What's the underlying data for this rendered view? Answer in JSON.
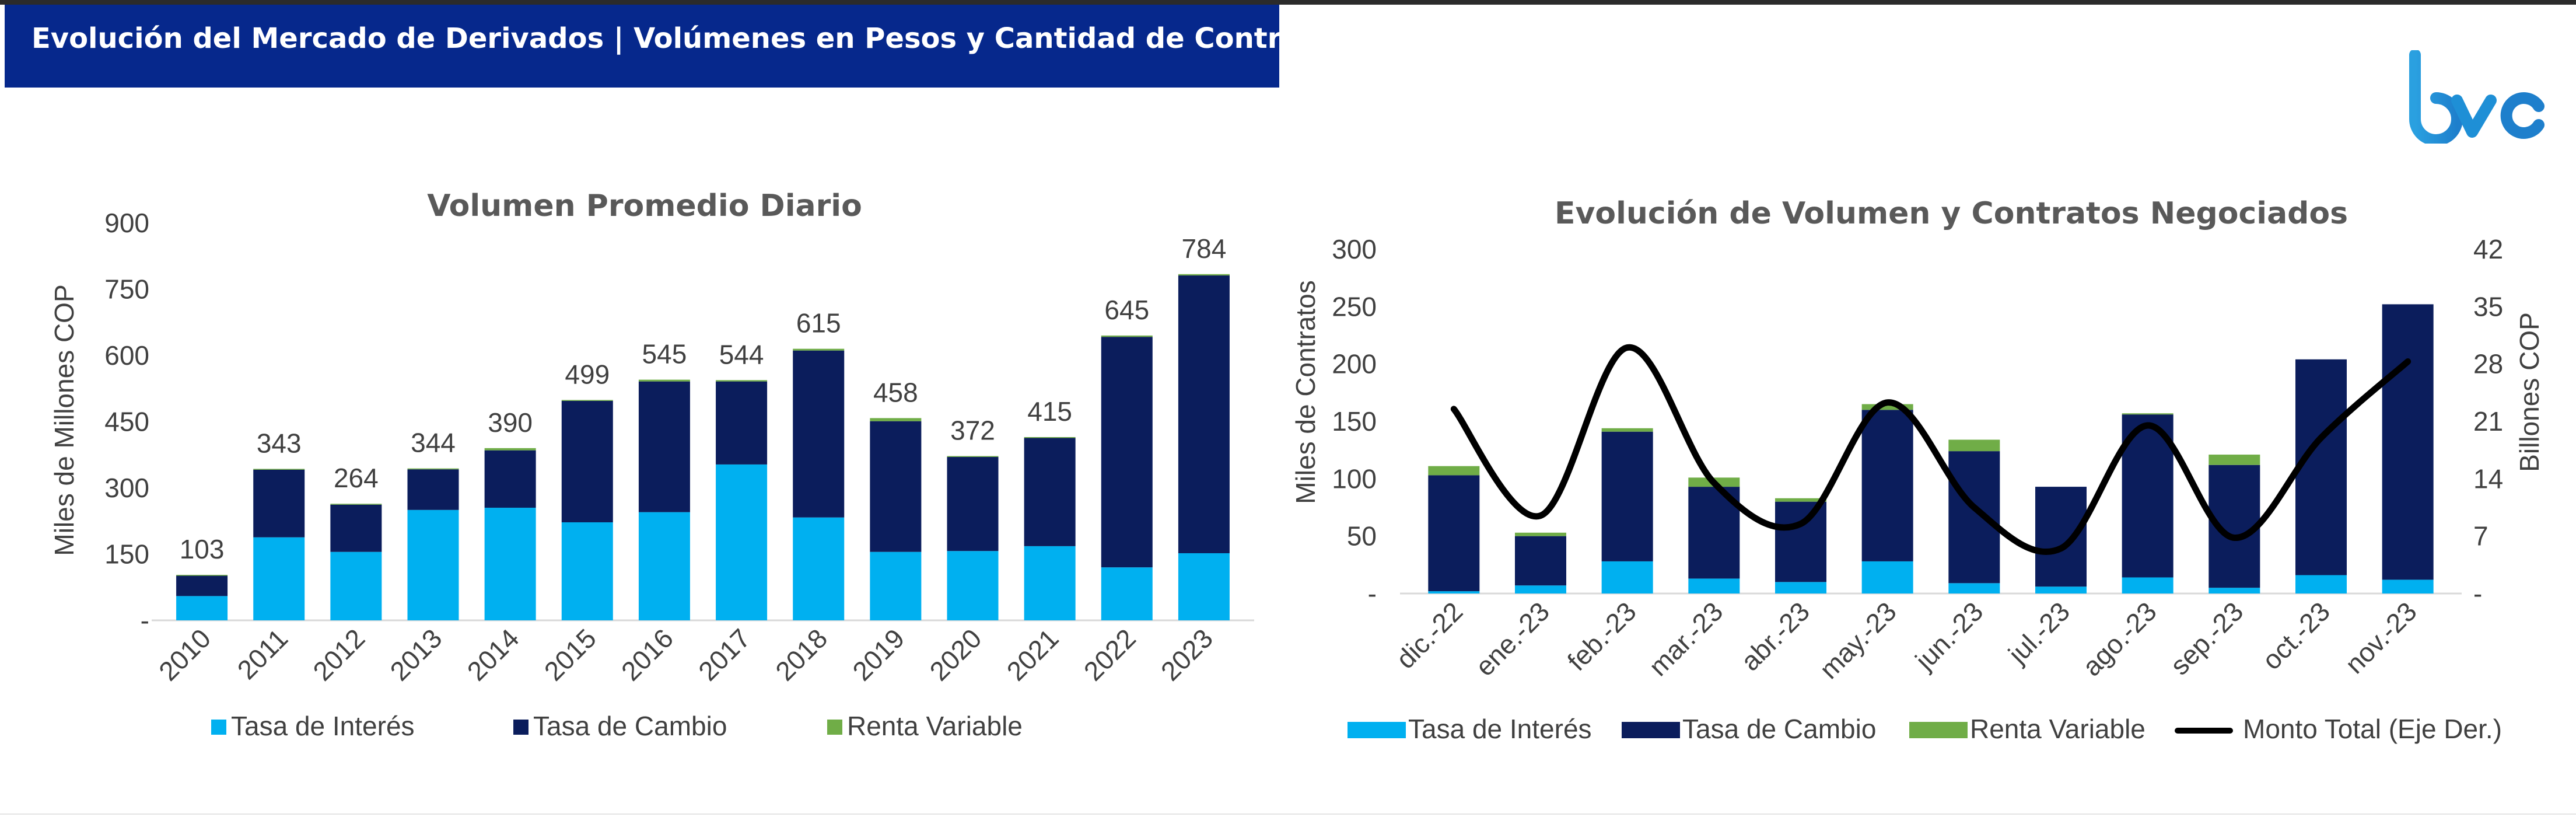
{
  "header": {
    "title": "Evolución del Mercado de Derivados | Volúmenes en Pesos y Cantidad de Contratos"
  },
  "logo": {
    "text": "bvc",
    "color": "#2a8fd6"
  },
  "colors": {
    "tasa_interes": "#00b0f0",
    "tasa_cambio": "#0b1d5c",
    "renta_variable": "#70ad47",
    "monto": "#000000",
    "header_bg": "#06288c"
  },
  "chart_data": [
    {
      "type": "bar",
      "stacked": true,
      "title": "Volumen Promedio Diario",
      "ylabel": "Miles de Millones COP",
      "ylim": [
        0,
        900
      ],
      "yticks": [
        "-",
        "150",
        "300",
        "450",
        "600",
        "750",
        "900"
      ],
      "categories": [
        "2010",
        "2011",
        "2012",
        "2013",
        "2014",
        "2015",
        "2016",
        "2017",
        "2018",
        "2019",
        "2020",
        "2021",
        "2022",
        "2023"
      ],
      "series": [
        {
          "name": "Tasa de Interés",
          "values": [
            55,
            188,
            155,
            250,
            255,
            222,
            245,
            353,
            233,
            155,
            157,
            168,
            120,
            152
          ]
        },
        {
          "name": "Tasa de Cambio",
          "values": [
            46,
            153,
            107,
            92,
            130,
            275,
            296,
            188,
            378,
            296,
            213,
            245,
            522,
            629
          ]
        },
        {
          "name": "Renta Variable",
          "values": [
            2,
            2,
            2,
            2,
            5,
            2,
            4,
            3,
            4,
            7,
            2,
            2,
            3,
            3
          ]
        }
      ],
      "totals": [
        "103",
        "343",
        "264",
        "344",
        "390",
        "499",
        "545",
        "544",
        "615",
        "458",
        "372",
        "415",
        "645",
        "784"
      ],
      "legend": "bottom"
    },
    {
      "type": "bar+line",
      "stacked": true,
      "title": "Evolución de Volumen y Contratos Negociados",
      "ylabel": "Miles de Contratos",
      "y2label": "Billones COP",
      "ylim": [
        0,
        300
      ],
      "y2lim": [
        0,
        42
      ],
      "yticks": [
        "-",
        "50",
        "100",
        "150",
        "200",
        "250",
        "300"
      ],
      "y2ticks": [
        "-",
        "7",
        "14",
        "21",
        "28",
        "35",
        "42"
      ],
      "categories": [
        "dic.-22",
        "ene.-23",
        "feb.-23",
        "mar.-23",
        "abr.-23",
        "may.-23",
        "jun.-23",
        "jul.-23",
        "ago.-23",
        "sep.-23",
        "oct.-23",
        "nov.-23"
      ],
      "series": [
        {
          "name": "Tasa de Interés",
          "values": [
            2,
            7,
            28,
            13,
            10,
            28,
            9,
            6,
            14,
            5,
            16,
            12
          ]
        },
        {
          "name": "Tasa de Cambio",
          "values": [
            101,
            43,
            113,
            80,
            70,
            132,
            115,
            87,
            142,
            107,
            188,
            240
          ]
        },
        {
          "name": "Renta Variable",
          "values": [
            8,
            3,
            3,
            8,
            3,
            5,
            10,
            0,
            1,
            9,
            0,
            0
          ]
        }
      ],
      "line": {
        "name": "Monto Total (Eje Der.)",
        "axis": "right",
        "values": [
          22.5,
          9.5,
          30,
          13.5,
          8.5,
          23.3,
          10.5,
          5.5,
          20.5,
          6.8,
          19,
          28.3
        ]
      },
      "legend": "bottom"
    }
  ]
}
